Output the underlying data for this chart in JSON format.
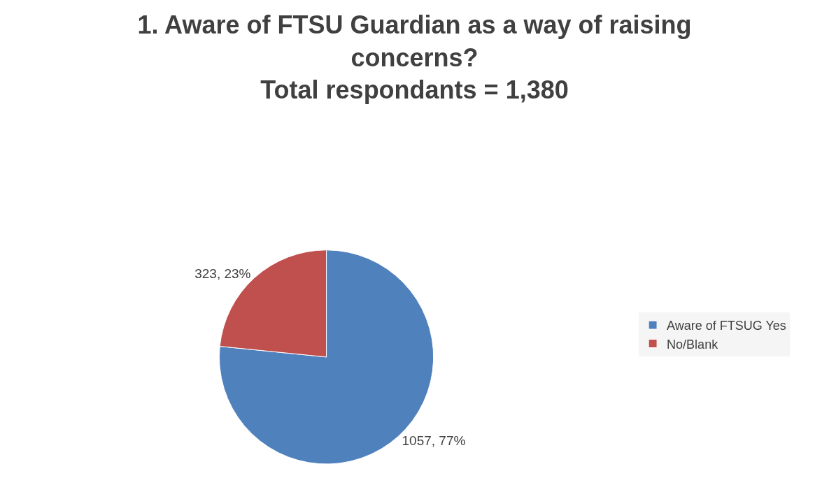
{
  "chart_data": {
    "type": "pie",
    "title": "1. Aware of FTSU Guardian as a way of raising concerns?",
    "subtitle": "Total respondants = 1,380",
    "categories": [
      "Aware of FTSUG Yes",
      "No/Blank"
    ],
    "values": [
      1057,
      323
    ],
    "colors": [
      "#4f81bd",
      "#c0504d"
    ],
    "value_labels": [
      "1057, 77%",
      "323, 23%"
    ],
    "legend": "right"
  }
}
